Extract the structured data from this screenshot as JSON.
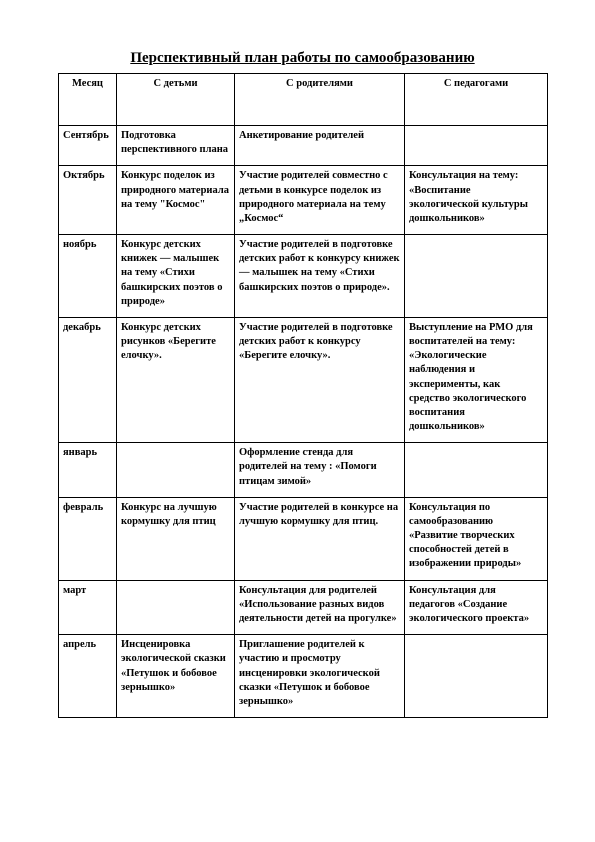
{
  "title": "Перспективный план работы по самообразованию",
  "columns": [
    "Месяц",
    "С детьми",
    "С родителями",
    "С педагогами"
  ],
  "rows": [
    {
      "month": "Сентябрь",
      "kids": "Подготовка перспективного плана",
      "parents": "Анкетирование    родителей",
      "teachers": ""
    },
    {
      "month": "Октябрь",
      "kids": "Конкурс поделок из природного материала на тему \"Космос\"",
      "parents": "Участие родителей совместно с детьми в конкурсе поделок из природного материала на тему „Космос“",
      "teachers": "Консультация на тему: «Воспитание экологической культуры дошкольников»"
    },
    {
      "month": "ноябрь",
      "kids": "Конкурс детских книжек — малышек на тему «Стихи башкирских поэтов о природе»",
      "parents": "Участие родителей в подготовке детских работ к конкурсу книжек — малышек на тему «Стихи башкирских поэтов о природе».",
      "teachers": ""
    },
    {
      "month": "декабрь",
      "kids": "Конкурс детских рисунков «Берегите елочку».",
      "parents": "Участие родителей в подготовке детских работ к конкурсу «Берегите елочку».",
      "teachers": "Выступление на РМО для воспитателей на тему: «Экологические наблюдения и  эксперименты, как средство экологического воспитания дошкольников»"
    },
    {
      "month": "январь",
      "kids": "",
      "parents": "Оформление стенда для родителей на тему : «Помоги птицам зимой»",
      "teachers": ""
    },
    {
      "month": "февраль",
      "kids": "Конкурс на лучшую кормушку для птиц",
      "parents": "Участие родителей в конкурсе на лучшую кормушку для птиц.",
      "teachers": "Консультация по самообразованию «Развитие творческих способностей детей в изображении природы»"
    },
    {
      "month": "март",
      "kids": "",
      "parents": "Консультация для родителей  «Использование разных видов деятельности детей на прогулке»",
      "teachers": "Консультация для педагогов «Создание экологического проекта»"
    },
    {
      "month": "апрель",
      "kids": "Инсценировка экологической сказки «Петушок и бобовое зернышко»",
      "parents": "Приглашение родителей к участию и просмотру инсценировки экологической сказки «Петушок и бобовое зернышко»",
      "teachers": ""
    }
  ]
}
